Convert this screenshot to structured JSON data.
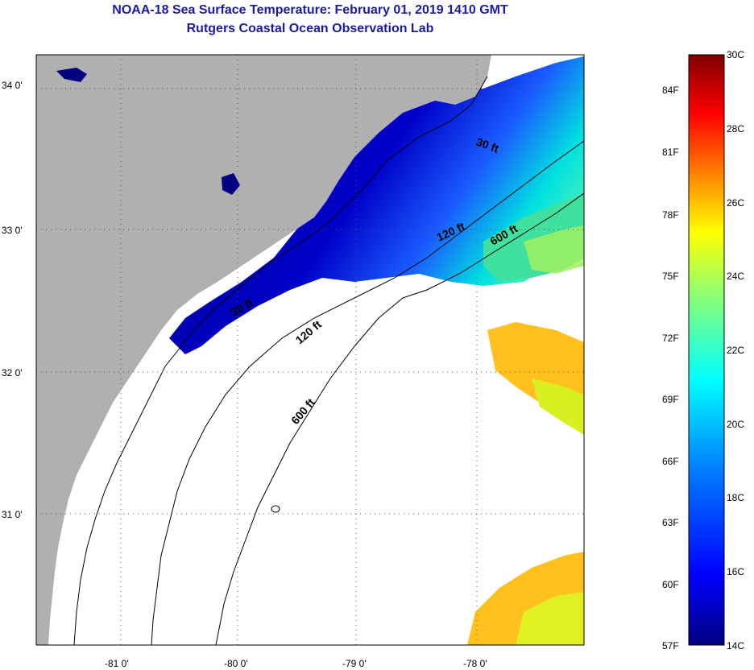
{
  "title": {
    "line1": "NOAA-18 Sea Surface Temperature:  February 01, 2019 1410 GMT",
    "line2": "Rutgers Coastal Ocean Observation Lab"
  },
  "map": {
    "lat_labels": [
      "34 0'",
      "33 0'",
      "32 0'",
      "31 0'"
    ],
    "lon_labels": [
      "-81 0'",
      "-80 0'",
      "-79 0'",
      "-78 0'"
    ],
    "land_color": "#b0b0b0",
    "cloud_color": "#ffffff",
    "contour_labels": {
      "a": "30 ft",
      "b": "120 ft",
      "c": "600 ft",
      "d": "30 ft",
      "e": "120 ft",
      "f": "600 ft"
    }
  },
  "colorbar": {
    "fahrenheit": [
      "84F",
      "81F",
      "78F",
      "75F",
      "72F",
      "69F",
      "66F",
      "63F",
      "60F",
      "57F"
    ],
    "celsius": [
      "30C",
      "28C",
      "26C",
      "24C",
      "22C",
      "20C",
      "18C",
      "16C",
      "14C"
    ],
    "colors": [
      "#800000",
      "#ff0000",
      "#ff8000",
      "#ffff00",
      "#80ff80",
      "#00ffff",
      "#0080ff",
      "#0000ff",
      "#000080"
    ]
  }
}
